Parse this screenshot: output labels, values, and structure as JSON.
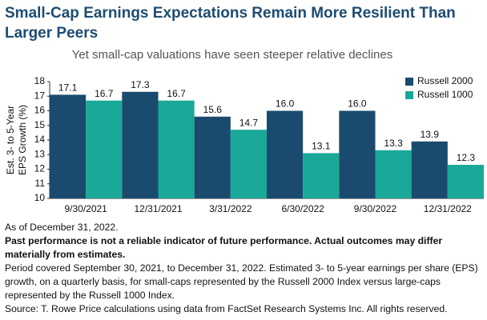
{
  "chart_data": {
    "type": "bar",
    "title": "Small-Cap Earnings Expectations Remain More Resilient Than Larger Peers",
    "subtitle": "Yet small-cap valuations have seen steeper relative declines",
    "ylabel": [
      "Est. 3- to 5-Year",
      "EPS Growth (%)"
    ],
    "categories": [
      "9/30/2021",
      "12/31/2021",
      "3/31/2022",
      "6/30/2022",
      "9/30/2022",
      "12/31/2022"
    ],
    "series": [
      {
        "name": "Russell 2000",
        "color": "#1a4b6e",
        "values": [
          17.1,
          17.3,
          15.6,
          16.0,
          16.0,
          13.9
        ],
        "value_labels": [
          "17.1",
          "17.3",
          "15.6",
          "16.0",
          "16.0",
          "13.9"
        ]
      },
      {
        "name": "Russell 1000",
        "color": "#1aa898",
        "values": [
          16.7,
          16.7,
          14.7,
          13.1,
          13.3,
          12.3
        ],
        "value_labels": [
          "16.7",
          "16.7",
          "14.7",
          "13.1",
          "13.3",
          "12.3"
        ]
      }
    ],
    "ylim": [
      10,
      18
    ],
    "yticks": [
      10,
      11,
      12,
      13,
      14,
      15,
      16,
      17,
      18
    ],
    "grid": false,
    "legend": "top-right",
    "notes": [
      "As of December 31, 2022.",
      "Past performance is not a reliable indicator of future performance. Actual outcomes may differ materially from estimates.",
      "Period covered September 30, 2021, to December 31, 2022. Estimated 3- to 5-year earnings per share (EPS) growth, on a quarterly basis, for small-caps represented by the Russell 2000 Index versus large-caps represented by the Russell 1000 Index.",
      "Source: T. Rowe Price calculations using data from FactSet Research Systems Inc. All rights reserved."
    ]
  }
}
